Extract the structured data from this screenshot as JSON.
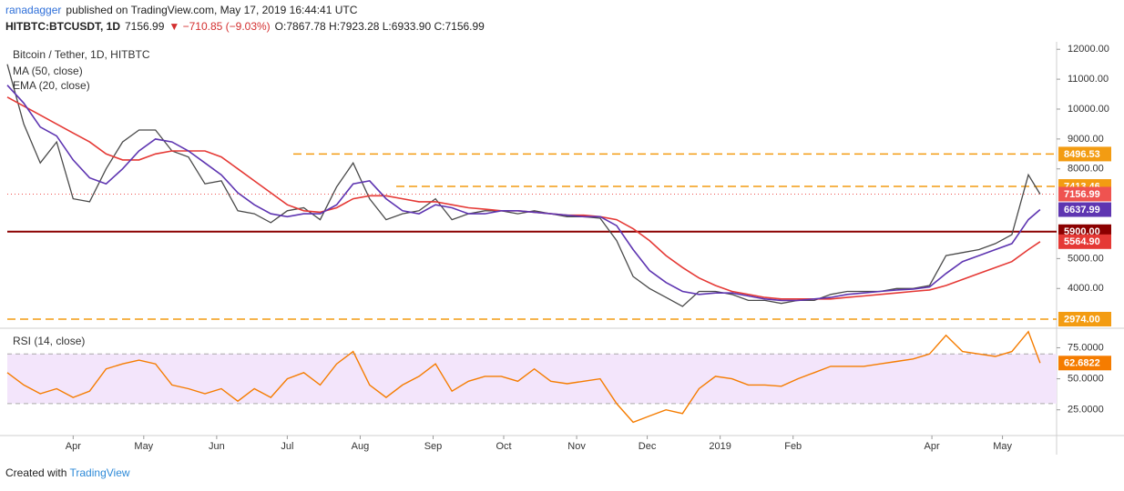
{
  "header": {
    "author": "ranadagger",
    "published": "published on TradingView.com, May 17, 2019 16:44:41 UTC",
    "symbol": "HITBTC:BTCUSDT, 1D",
    "last": "7156.99",
    "change": "▼ −710.85 (−9.03%)",
    "ohlc": "O:7867.78 H:7923.28 L:6933.90 C:7156.99"
  },
  "footer": {
    "created_with": "Created with",
    "brand": "TradingView"
  },
  "chart_data": {
    "type": "line",
    "title": "Bitcoin / Tether, 1D, HITBTC",
    "x": [
      0,
      7,
      14,
      21,
      28,
      35,
      42,
      49,
      56,
      63,
      70,
      77,
      84,
      91,
      98,
      105,
      112,
      119,
      126,
      133,
      140,
      147,
      154,
      161,
      168,
      175,
      182,
      189,
      196,
      203,
      210,
      217,
      224,
      231,
      238,
      245,
      252,
      259,
      266,
      273,
      280,
      287,
      294,
      301,
      308,
      315,
      322,
      329,
      336,
      343,
      350,
      357,
      364,
      371,
      378,
      385,
      392,
      399,
      406,
      413,
      420,
      427,
      434,
      439
    ],
    "xlim": [
      0,
      446
    ],
    "xticks": [
      {
        "value": 28,
        "label": "Apr"
      },
      {
        "value": 58,
        "label": "May"
      },
      {
        "value": 89,
        "label": "Jun"
      },
      {
        "value": 119,
        "label": "Jul"
      },
      {
        "value": 150,
        "label": "Aug"
      },
      {
        "value": 181,
        "label": "Sep"
      },
      {
        "value": 211,
        "label": "Oct"
      },
      {
        "value": 242,
        "label": "Nov"
      },
      {
        "value": 272,
        "label": "Dec"
      },
      {
        "value": 303,
        "label": "2019"
      },
      {
        "value": 334,
        "label": "Feb"
      },
      {
        "value": 393,
        "label": "Apr"
      },
      {
        "value": 423,
        "label": "May"
      }
    ],
    "ylim": [
      2700,
      12250
    ],
    "yticks": [
      {
        "value": 12000,
        "label": "12000.00"
      },
      {
        "value": 11000,
        "label": "11000.00"
      },
      {
        "value": 10000,
        "label": "10000.00"
      },
      {
        "value": 9000,
        "label": "9000.00"
      },
      {
        "value": 8000,
        "label": "8000.00"
      },
      {
        "value": 5000,
        "label": "5000.00"
      },
      {
        "value": 4000,
        "label": "4000.00"
      }
    ],
    "series": [
      {
        "name": "Close",
        "color": "#4a4a4a",
        "tag_color": "#ef5350",
        "last_label": "7156.99",
        "values": [
          11500,
          9500,
          8200,
          8900,
          7000,
          6900,
          8000,
          8900,
          9300,
          9300,
          8600,
          8400,
          7500,
          7600,
          6600,
          6500,
          6200,
          6600,
          6700,
          6300,
          7400,
          8200,
          7000,
          6300,
          6500,
          6600,
          7000,
          6300,
          6500,
          6600,
          6600,
          6500,
          6600,
          6500,
          6400,
          6400,
          6350,
          5600,
          4400,
          4000,
          3700,
          3400,
          3900,
          3900,
          3800,
          3600,
          3600,
          3500,
          3600,
          3600,
          3800,
          3900,
          3900,
          3900,
          4000,
          4000,
          4100,
          5100,
          5200,
          5300,
          5500,
          5800,
          7800,
          7156.99
        ]
      },
      {
        "name": "MA (50, close)",
        "color": "#e53935",
        "tag_color": "#e53935",
        "last_label": "5564.90",
        "values": [
          10400,
          10100,
          9800,
          9500,
          9200,
          8900,
          8500,
          8300,
          8300,
          8500,
          8600,
          8600,
          8600,
          8400,
          8000,
          7600,
          7200,
          6800,
          6600,
          6550,
          6700,
          7000,
          7100,
          7100,
          7000,
          6900,
          6900,
          6800,
          6700,
          6650,
          6600,
          6600,
          6550,
          6500,
          6450,
          6450,
          6400,
          6300,
          6000,
          5600,
          5100,
          4700,
          4350,
          4100,
          3900,
          3800,
          3700,
          3650,
          3650,
          3650,
          3650,
          3700,
          3750,
          3800,
          3850,
          3900,
          3950,
          4100,
          4300,
          4500,
          4700,
          4900,
          5300,
          5564.9
        ]
      },
      {
        "name": "EMA (20, close)",
        "color": "#5e35b1",
        "tag_color": "#5e35b1",
        "last_label": "6637.99",
        "values": [
          10800,
          10200,
          9400,
          9100,
          8300,
          7700,
          7500,
          8000,
          8600,
          9000,
          8900,
          8600,
          8200,
          7800,
          7200,
          6800,
          6500,
          6400,
          6500,
          6500,
          6800,
          7500,
          7600,
          7000,
          6600,
          6500,
          6800,
          6700,
          6500,
          6500,
          6600,
          6600,
          6550,
          6500,
          6450,
          6400,
          6400,
          6100,
          5300,
          4600,
          4200,
          3900,
          3800,
          3850,
          3850,
          3750,
          3650,
          3600,
          3600,
          3650,
          3700,
          3800,
          3850,
          3900,
          3950,
          3980,
          4050,
          4500,
          4900,
          5100,
          5300,
          5500,
          6300,
          6637.99
        ]
      }
    ],
    "levels": [
      {
        "value": 8496.53,
        "label": "8496.53",
        "color": "#f39c12",
        "style": "dashed"
      },
      {
        "value": 7413.46,
        "label": "7413.46",
        "color": "#f39c12",
        "style": "dashed"
      },
      {
        "value": 5900,
        "label": "5900.00",
        "color": "#8b0000",
        "style": "solid"
      },
      {
        "value": 2974,
        "label": "2974.00",
        "color": "#f39c12",
        "style": "dashed"
      }
    ],
    "rsi": {
      "title": "RSI (14, close)",
      "ylim": [
        5,
        90
      ],
      "band": [
        30,
        70
      ],
      "yticks": [
        {
          "value": 75,
          "label": "75.0000"
        },
        {
          "value": 50,
          "label": "50.0000"
        },
        {
          "value": 25,
          "label": "25.0000"
        }
      ],
      "series": [
        {
          "name": "RSI",
          "color": "#f57c00",
          "last_label": "62.6822",
          "values": [
            55,
            45,
            38,
            42,
            35,
            40,
            58,
            62,
            65,
            62,
            45,
            42,
            38,
            42,
            32,
            42,
            35,
            50,
            55,
            45,
            62,
            72,
            45,
            35,
            45,
            52,
            62,
            40,
            48,
            52,
            52,
            48,
            58,
            48,
            46,
            48,
            50,
            30,
            15,
            20,
            25,
            22,
            42,
            52,
            50,
            45,
            45,
            44,
            50,
            55,
            60,
            60,
            60,
            62,
            64,
            66,
            70,
            85,
            72,
            70,
            68,
            72,
            88,
            62.6822
          ]
        }
      ]
    }
  }
}
